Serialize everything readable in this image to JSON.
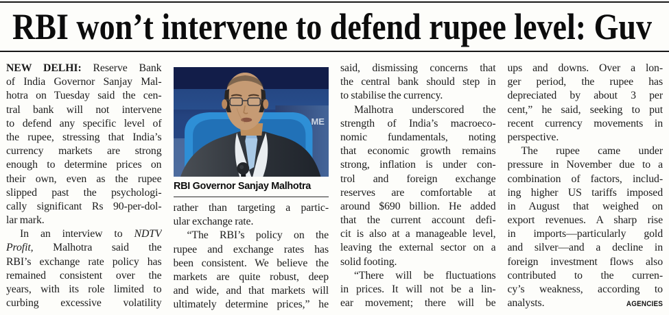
{
  "page": {
    "paper_color": "#fdfdfa",
    "ink_color": "#1b1b1b",
    "rule_color": "#161616"
  },
  "masthead": {
    "headline": "RBI won’t intervene to defend rupee level: Guv"
  },
  "photo": {
    "caption": "RBI Governor Sanjay Malhotra",
    "background_text": "ME",
    "description": "RBI Governor Sanjay Malhotra in dark suit and light blue tie speaking at a microphone against a blue conference backdrop",
    "colors": {
      "backdrop_dark": "#17255a",
      "backdrop_mid": "#2b3f6e",
      "panel_blue": "#4c7fc0",
      "chair_blue": "#2e8fd6",
      "suit": "#32373e",
      "shirt": "#e9edf0",
      "tie": "#a9c9e6",
      "skin": "#c69b74"
    }
  },
  "article": {
    "dateline": "NEW DELHI:",
    "credit": "AGENCIES",
    "columns": [
      {
        "lines": [
          {
            "t": "**NEW DELHI:** Reserve Bank"
          },
          {
            "t": "of India Governor Sanjay Mal-"
          },
          {
            "t": "hotra on Tuesday said the cen-"
          },
          {
            "t": "tral bank will not intervene"
          },
          {
            "t": "to defend any specific level of"
          },
          {
            "t": "the rupee, stressing that India’s"
          },
          {
            "t": "currency markets are strong"
          },
          {
            "t": "enough to determine prices on"
          },
          {
            "t": "their own, even as the rupee"
          },
          {
            "t": "slipped past the psychologi-"
          },
          {
            "t": "cally significant Rs 90-per-dol-"
          },
          {
            "t": "lar mark.",
            "end": true
          },
          {
            "t": "In an interview to *NDTV*",
            "in": true
          },
          {
            "t": "*Profit,* Malhotra said the"
          },
          {
            "t": "RBI’s exchange rate policy has"
          },
          {
            "t": "remained consistent over the"
          },
          {
            "t": "years, with its role limited to"
          },
          {
            "t": "curbing excessive volatility"
          }
        ]
      },
      {
        "lines": [
          {
            "t": "rather than targeting a partic-"
          },
          {
            "t": "ular exchange rate.",
            "end": true
          },
          {
            "t": "“The RBI’s policy on the",
            "in": true
          },
          {
            "t": "rupee and exchange rates has"
          },
          {
            "t": "been consistent. We believe the"
          },
          {
            "t": "markets are quite robust, deep"
          },
          {
            "t": "and wide, and that markets will"
          },
          {
            "t": "ultimately determine prices,” he"
          }
        ]
      },
      {
        "lines": [
          {
            "t": "said, dismissing concerns that"
          },
          {
            "t": "the central bank should step in"
          },
          {
            "t": "to stabilise the currency.",
            "end": true
          },
          {
            "t": "Malhotra underscored the",
            "in": true
          },
          {
            "t": "strength of India’s macroeco-"
          },
          {
            "t": "nomic fundamentals, noting"
          },
          {
            "t": "that economic growth remains"
          },
          {
            "t": "strong, inflation is under con-"
          },
          {
            "t": "trol and foreign exchange"
          },
          {
            "t": "reserves are comfortable at"
          },
          {
            "t": "around $690 billion. He added"
          },
          {
            "t": "that the current account defi-"
          },
          {
            "t": "cit is also at a manageable level,"
          },
          {
            "t": "leaving the external sector on a"
          },
          {
            "t": "solid footing.",
            "end": true
          },
          {
            "t": "“There will be fluctuations",
            "in": true
          },
          {
            "t": "in prices. It will not be a lin-"
          },
          {
            "t": "ear movement; there will be"
          }
        ]
      },
      {
        "lines": [
          {
            "t": "ups and downs. Over a lon-"
          },
          {
            "t": "ger period, the rupee has"
          },
          {
            "t": "depreciated by about 3 per"
          },
          {
            "t": "cent,” he said, seeking to put"
          },
          {
            "t": "recent currency movements in"
          },
          {
            "t": "perspective.",
            "end": true
          },
          {
            "t": "The rupee came under",
            "in": true
          },
          {
            "t": "pressure in November due to a"
          },
          {
            "t": "combination of factors, includ-"
          },
          {
            "t": "ing higher US tariffs imposed"
          },
          {
            "t": "in August that weighed on"
          },
          {
            "t": "export revenues. A sharp rise"
          },
          {
            "t": "in imports—particularly gold"
          },
          {
            "t": "and silver—and a decline in"
          },
          {
            "t": "foreign investment flows also"
          },
          {
            "t": "contributed to the curren-"
          },
          {
            "t": "cy’s weakness, according to"
          },
          {
            "t": "analysts.",
            "end": true,
            "sig": "AGENCIES"
          }
        ]
      }
    ]
  }
}
